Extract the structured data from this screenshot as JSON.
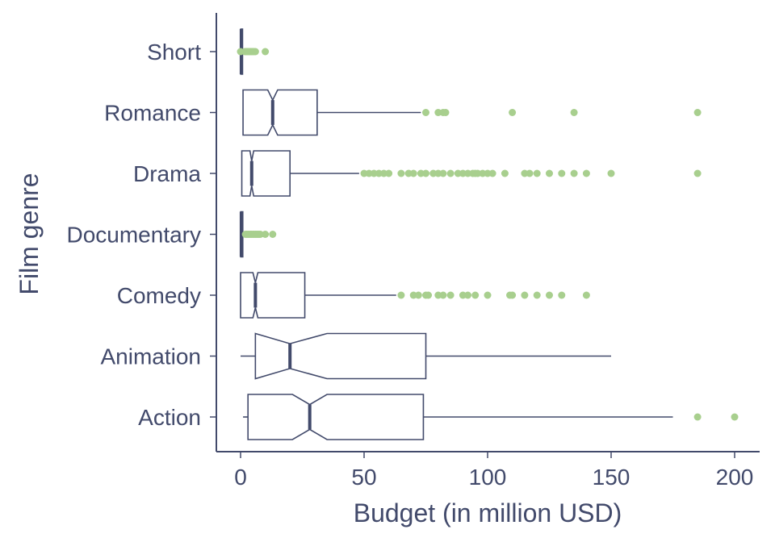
{
  "chart_data": {
    "type": "boxplot",
    "orientation": "horizontal",
    "notched": true,
    "xlabel": "Budget (in million USD)",
    "ylabel": "Film genre",
    "xlim": [
      -10,
      210
    ],
    "xticks": [
      0,
      50,
      100,
      150,
      200
    ],
    "xtick_labels": [
      "0",
      "50",
      "100",
      "150",
      "200"
    ],
    "grid": false,
    "colors": {
      "axis": "#424a6b",
      "box": "#424a6b",
      "outlier": "#a8cf8e",
      "background": "#ffffff"
    },
    "categories": [
      "Short",
      "Romance",
      "Drama",
      "Documentary",
      "Comedy",
      "Animation",
      "Action"
    ],
    "boxes": [
      {
        "category": "Short",
        "whisker_low": 0,
        "q1": 0.1,
        "median": 0.3,
        "q3": 0.8,
        "whisker_high": 1.5,
        "notch_low": 0.2,
        "notch_high": 0.45,
        "outliers": [
          0,
          1.8,
          2.2,
          2.6,
          3,
          3.4,
          3.8,
          4.2,
          4.6,
          5,
          5.5,
          6,
          10
        ]
      },
      {
        "category": "Romance",
        "whisker_low": 1,
        "q1": 1,
        "median": 13,
        "q3": 31,
        "whisker_high": 73,
        "notch_low": 11,
        "notch_high": 15,
        "outliers": [
          75,
          80,
          82,
          83,
          110,
          135,
          185
        ]
      },
      {
        "category": "Drama",
        "whisker_low": 0.5,
        "q1": 0.5,
        "median": 4.5,
        "q3": 20,
        "whisker_high": 48,
        "notch_low": 3.8,
        "notch_high": 5.3,
        "outliers": [
          50,
          52,
          54,
          56,
          58,
          60,
          65,
          68,
          70,
          73,
          75,
          78,
          80,
          82,
          85,
          88,
          90,
          92,
          94,
          95,
          96,
          98,
          100,
          102,
          107,
          115,
          117,
          120,
          125,
          130,
          135,
          140,
          150,
          185
        ]
      },
      {
        "category": "Documentary",
        "whisker_low": 0,
        "q1": 0.1,
        "median": 0.3,
        "q3": 0.9,
        "whisker_high": 1.8,
        "notch_low": 0.2,
        "notch_high": 0.45,
        "outliers": [
          2,
          2.5,
          3,
          3.5,
          4,
          4.5,
          5,
          5.5,
          6,
          6.5,
          7,
          7.5,
          8,
          10,
          13
        ]
      },
      {
        "category": "Comedy",
        "whisker_low": 0,
        "q1": 0,
        "median": 6,
        "q3": 26,
        "whisker_high": 63,
        "notch_low": 5,
        "notch_high": 7,
        "outliers": [
          65,
          70,
          72,
          75,
          76,
          80,
          82,
          85,
          90,
          92,
          95,
          100,
          109,
          110,
          115,
          120,
          125,
          130,
          140
        ]
      },
      {
        "category": "Animation",
        "whisker_low": 0,
        "q1": 6,
        "median": 20,
        "q3": 75,
        "whisker_high": 150,
        "notch_low": 6,
        "notch_high": 35,
        "outliers": []
      },
      {
        "category": "Action",
        "whisker_low": 1,
        "q1": 3,
        "median": 28,
        "q3": 74,
        "whisker_high": 175,
        "notch_low": 21,
        "notch_high": 35,
        "outliers": [
          185,
          200
        ]
      }
    ]
  }
}
